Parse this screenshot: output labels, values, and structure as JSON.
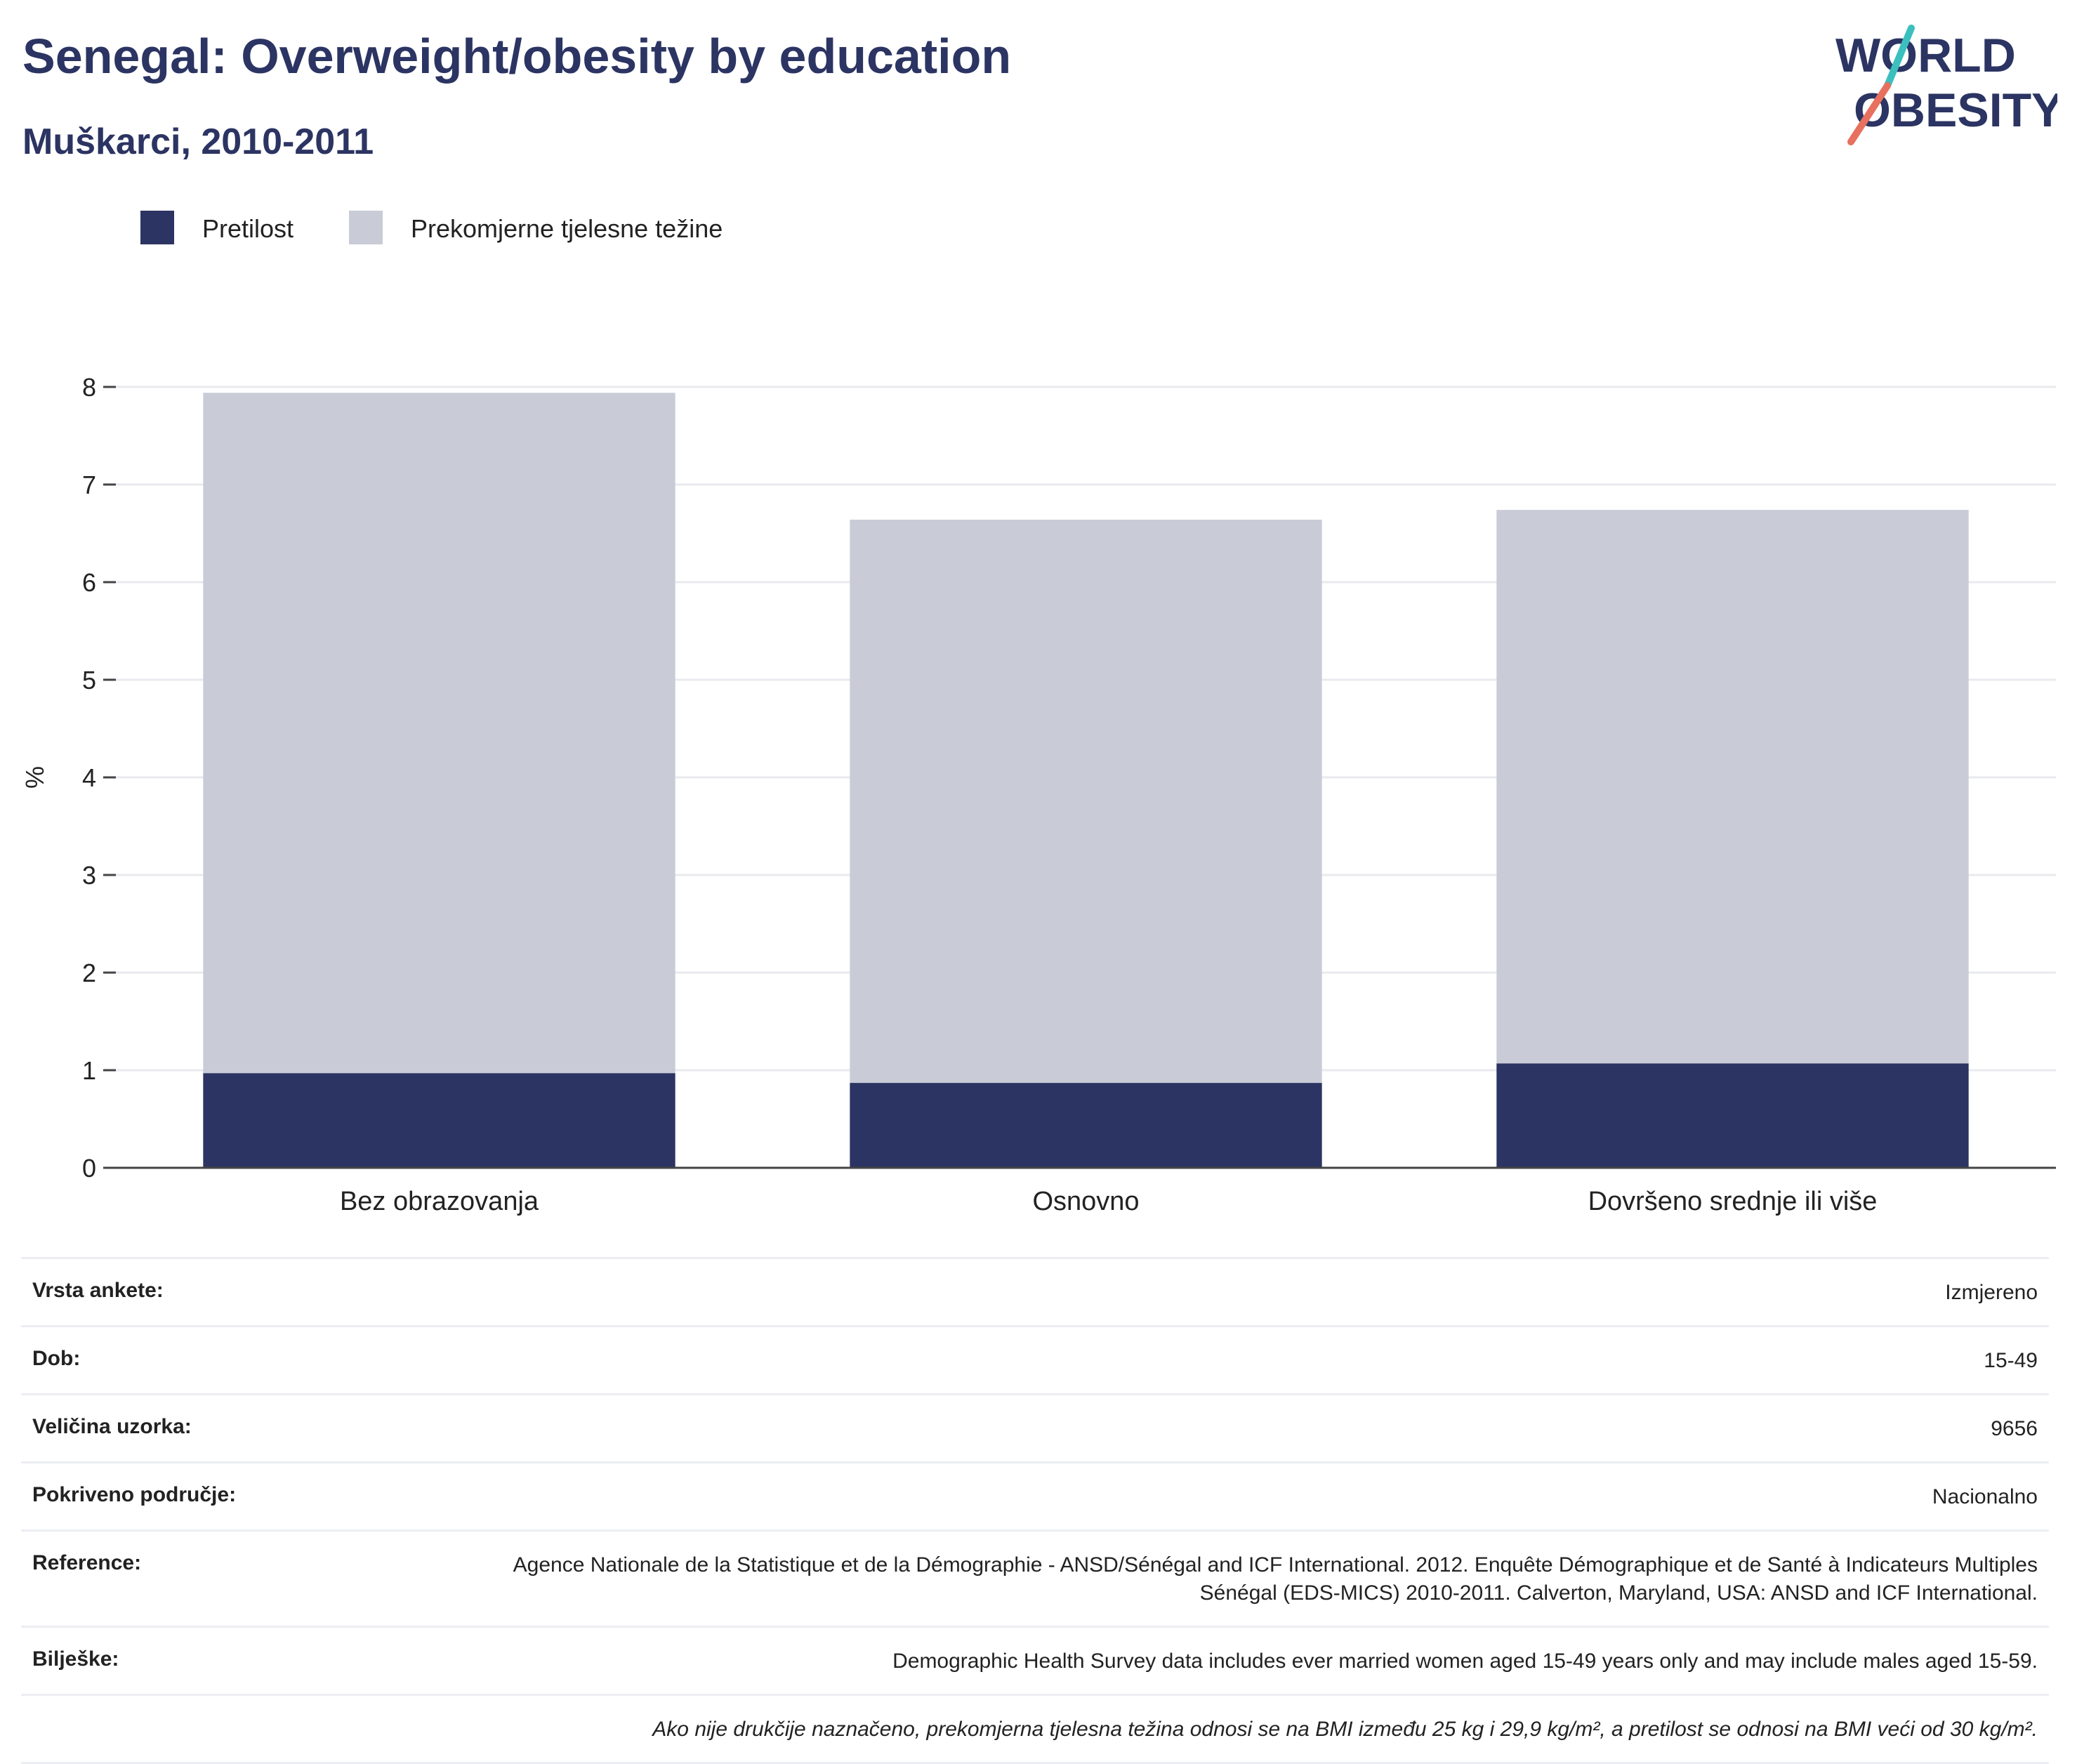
{
  "header": {
    "title": "Senegal: Overweight/obesity by education",
    "subtitle": "Muškarci, 2010-2011",
    "logo_line1": "WORLD",
    "logo_line2": "OBESITY"
  },
  "colors": {
    "obesity": "#2b3462",
    "overweight": "#c9ccd7",
    "title": "#2b3462",
    "logo_teal": "#3bbfbf",
    "logo_coral": "#e8705f"
  },
  "chart_data": {
    "type": "bar",
    "stacked": true,
    "categories": [
      "Bez obrazovanja",
      "Osnovno",
      "Dovršeno srednje ili više"
    ],
    "series": [
      {
        "name": "Pretilost",
        "values": [
          0.97,
          0.87,
          1.07
        ]
      },
      {
        "name": "Prekomjerne tjelesne težine",
        "values": [
          6.97,
          5.77,
          5.67
        ]
      }
    ],
    "ylabel": "%",
    "ylim": [
      0,
      8
    ],
    "yticks": [
      "0",
      "1",
      "2",
      "3",
      "4",
      "5",
      "6",
      "7",
      "8"
    ],
    "grid": true,
    "legend_position": "top-left"
  },
  "info": {
    "rows": [
      {
        "label": "Vrsta ankete:",
        "value": "Izmjereno"
      },
      {
        "label": "Dob:",
        "value": "15-49"
      },
      {
        "label": "Veličina uzorka:",
        "value": "9656"
      },
      {
        "label": "Pokriveno područje:",
        "value": "Nacionalno"
      },
      {
        "label": "Reference:",
        "value": "Agence Nationale de la Statistique et de la Démographie - ANSD/Sénégal and ICF International. 2012. Enquête Démographique et de Santé à Indicateurs Multiples Sénégal (EDS-MICS) 2010-2011. Calverton, Maryland, USA: ANSD and ICF International."
      },
      {
        "label": "Bilješke:",
        "value": "Demographic Health Survey data includes ever married women aged 15-49 years only and may include males aged 15-59."
      }
    ],
    "footnote": "Ako nije drukčije naznačeno, prekomjerna tjelesna težina odnosi se na BMI između 25 kg i 29,9 kg/m², a pretilost se odnosi na BMI veći od 30 kg/m²."
  }
}
